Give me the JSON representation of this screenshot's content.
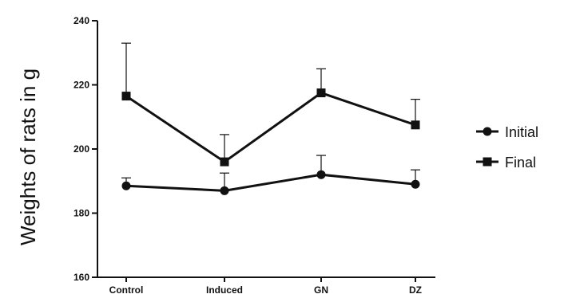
{
  "chart_data": {
    "type": "line",
    "title": "",
    "xlabel": "",
    "ylabel": "Weights of rats in g",
    "categories": [
      "Control",
      "Induced",
      "GN",
      "DZ"
    ],
    "ylim": [
      160,
      240
    ],
    "yticks": [
      160,
      180,
      200,
      220,
      240
    ],
    "grid": false,
    "legend_position": "right",
    "series": [
      {
        "name": "Initial",
        "marker": "circle",
        "values": [
          188.5,
          187,
          192,
          189
        ],
        "error_plus": [
          2.5,
          5.5,
          6,
          4.5
        ]
      },
      {
        "name": "Final",
        "marker": "square",
        "values": [
          216.5,
          196,
          217.5,
          207.5
        ],
        "error_plus": [
          16.5,
          8.5,
          7.5,
          8
        ]
      }
    ],
    "colors": {
      "line": "#111111",
      "axis": "#111111"
    }
  }
}
